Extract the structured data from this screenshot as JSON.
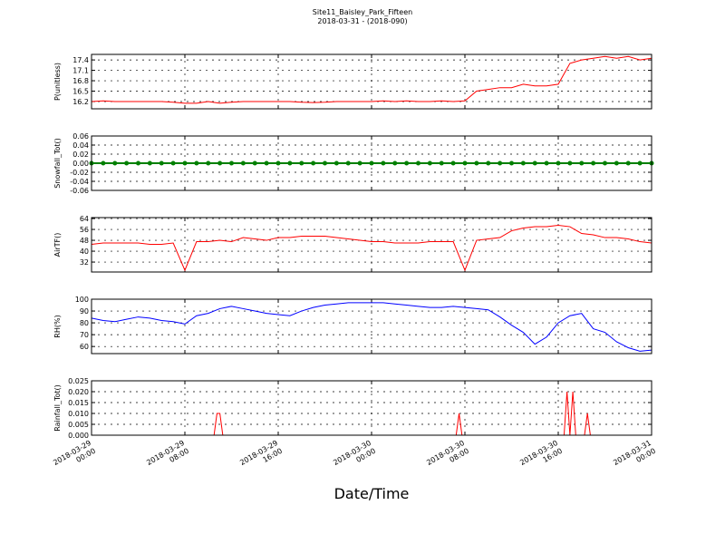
{
  "chart_data": [
    {
      "type": "line",
      "title": "Site11_Baisley_Park_Fifteen",
      "subtitle": "2018-03-31 - (2018-090)",
      "ylabel": "P(unitless)",
      "color": "#ff0000",
      "grid": true,
      "xlim": [
        "2018-03-29 00:00",
        "2018-03-31 00:00"
      ],
      "xticks": [
        "2018-03-29 00:00",
        "2018-03-29 08:00",
        "2018-03-29 16:00",
        "2018-03-30 00:00",
        "2018-03-30 08:00",
        "2018-03-30 16:00",
        "2018-03-31 00:00"
      ],
      "ylim": [
        15.99,
        17.56
      ],
      "yticks": [
        16.2,
        16.5,
        16.8,
        17.1,
        17.4
      ],
      "x": [
        "2018-03-29 00:00",
        "2018-03-29 01:00",
        "2018-03-29 02:00",
        "2018-03-29 03:00",
        "2018-03-29 04:00",
        "2018-03-29 05:00",
        "2018-03-29 06:00",
        "2018-03-29 07:00",
        "2018-03-29 08:00",
        "2018-03-29 09:00",
        "2018-03-29 10:00",
        "2018-03-29 11:00",
        "2018-03-29 12:00",
        "2018-03-29 13:00",
        "2018-03-29 14:00",
        "2018-03-29 15:00",
        "2018-03-29 16:00",
        "2018-03-29 17:00",
        "2018-03-29 18:00",
        "2018-03-29 19:00",
        "2018-03-29 20:00",
        "2018-03-29 21:00",
        "2018-03-29 22:00",
        "2018-03-29 23:00",
        "2018-03-30 00:00",
        "2018-03-30 01:00",
        "2018-03-30 02:00",
        "2018-03-30 03:00",
        "2018-03-30 04:00",
        "2018-03-30 05:00",
        "2018-03-30 06:00",
        "2018-03-30 07:00",
        "2018-03-30 08:00",
        "2018-03-30 09:00",
        "2018-03-30 10:00",
        "2018-03-30 11:00",
        "2018-03-30 12:00",
        "2018-03-30 13:00",
        "2018-03-30 14:00",
        "2018-03-30 15:00",
        "2018-03-30 16:00",
        "2018-03-30 17:00",
        "2018-03-30 18:00",
        "2018-03-30 19:00",
        "2018-03-30 20:00",
        "2018-03-30 21:00",
        "2018-03-30 22:00",
        "2018-03-30 23:00",
        "2018-03-31 00:00"
      ],
      "values": [
        16.2,
        16.22,
        16.2,
        16.2,
        16.2,
        16.2,
        16.2,
        16.18,
        16.15,
        16.15,
        16.2,
        16.15,
        16.18,
        16.2,
        16.2,
        16.2,
        16.2,
        16.2,
        16.18,
        16.17,
        16.18,
        16.2,
        16.2,
        16.2,
        16.2,
        16.22,
        16.2,
        16.22,
        16.2,
        16.2,
        16.22,
        16.2,
        16.22,
        16.5,
        16.55,
        16.6,
        16.6,
        16.7,
        16.65,
        16.65,
        16.7,
        17.3,
        17.4,
        17.45,
        17.5,
        17.45,
        17.5,
        17.4,
        17.45
      ]
    },
    {
      "type": "line",
      "ylabel": "Snowfall_Tot()",
      "color": "#008000",
      "marker": "o",
      "grid": true,
      "xlim": [
        "2018-03-29 00:00",
        "2018-03-31 00:00"
      ],
      "xticks": [
        "2018-03-29 00:00",
        "2018-03-29 08:00",
        "2018-03-29 16:00",
        "2018-03-30 00:00",
        "2018-03-30 08:00",
        "2018-03-30 16:00",
        "2018-03-31 00:00"
      ],
      "ylim": [
        -0.06,
        0.06
      ],
      "yticks": [
        -0.06,
        -0.04,
        -0.02,
        {
          "value": 0,
          "label": "0.00"
        },
        0.02,
        0.04,
        0.06
      ],
      "x": [
        "2018-03-29 00:00",
        "2018-03-29 01:00",
        "2018-03-29 02:00",
        "2018-03-29 03:00",
        "2018-03-29 04:00",
        "2018-03-29 05:00",
        "2018-03-29 06:00",
        "2018-03-29 07:00",
        "2018-03-29 08:00",
        "2018-03-29 09:00",
        "2018-03-29 10:00",
        "2018-03-29 11:00",
        "2018-03-29 12:00",
        "2018-03-29 13:00",
        "2018-03-29 14:00",
        "2018-03-29 15:00",
        "2018-03-29 16:00",
        "2018-03-29 17:00",
        "2018-03-29 18:00",
        "2018-03-29 19:00",
        "2018-03-29 20:00",
        "2018-03-29 21:00",
        "2018-03-29 22:00",
        "2018-03-29 23:00",
        "2018-03-30 00:00",
        "2018-03-30 01:00",
        "2018-03-30 02:00",
        "2018-03-30 03:00",
        "2018-03-30 04:00",
        "2018-03-30 05:00",
        "2018-03-30 06:00",
        "2018-03-30 07:00",
        "2018-03-30 08:00",
        "2018-03-30 09:00",
        "2018-03-30 10:00",
        "2018-03-30 11:00",
        "2018-03-30 12:00",
        "2018-03-30 13:00",
        "2018-03-30 14:00",
        "2018-03-30 15:00",
        "2018-03-30 16:00",
        "2018-03-30 17:00",
        "2018-03-30 18:00",
        "2018-03-30 19:00",
        "2018-03-30 20:00",
        "2018-03-30 21:00",
        "2018-03-30 22:00",
        "2018-03-30 23:00",
        "2018-03-31 00:00"
      ],
      "values": [
        0,
        0,
        0,
        0,
        0,
        0,
        0,
        0,
        0,
        0,
        0,
        0,
        0,
        0,
        0,
        0,
        0,
        0,
        0,
        0,
        0,
        0,
        0,
        0,
        0,
        0,
        0,
        0,
        0,
        0,
        0,
        0,
        0,
        0,
        0,
        0,
        0,
        0,
        0,
        0,
        0,
        0,
        0,
        0,
        0,
        0,
        0,
        0,
        0
      ]
    },
    {
      "type": "line",
      "ylabel": "AirTF()",
      "color": "#ff0000",
      "grid": true,
      "xlim": [
        "2018-03-29 00:00",
        "2018-03-31 00:00"
      ],
      "xticks": [
        "2018-03-29 00:00",
        "2018-03-29 08:00",
        "2018-03-29 16:00",
        "2018-03-30 00:00",
        "2018-03-30 08:00",
        "2018-03-30 16:00",
        "2018-03-31 00:00"
      ],
      "ylim": [
        24.7,
        64.7
      ],
      "yticks": [
        32,
        40,
        48,
        56,
        64
      ],
      "x": [
        "2018-03-29 00:00",
        "2018-03-29 01:00",
        "2018-03-29 02:00",
        "2018-03-29 03:00",
        "2018-03-29 04:00",
        "2018-03-29 05:00",
        "2018-03-29 06:00",
        "2018-03-29 07:00",
        "2018-03-29 08:00",
        "2018-03-29 09:00",
        "2018-03-29 10:00",
        "2018-03-29 11:00",
        "2018-03-29 12:00",
        "2018-03-29 13:00",
        "2018-03-29 14:00",
        "2018-03-29 15:00",
        "2018-03-29 16:00",
        "2018-03-29 17:00",
        "2018-03-29 18:00",
        "2018-03-29 19:00",
        "2018-03-29 20:00",
        "2018-03-29 21:00",
        "2018-03-29 22:00",
        "2018-03-29 23:00",
        "2018-03-30 00:00",
        "2018-03-30 01:00",
        "2018-03-30 02:00",
        "2018-03-30 03:00",
        "2018-03-30 04:00",
        "2018-03-30 05:00",
        "2018-03-30 06:00",
        "2018-03-30 07:00",
        "2018-03-30 08:00",
        "2018-03-30 09:00",
        "2018-03-30 10:00",
        "2018-03-30 11:00",
        "2018-03-30 12:00",
        "2018-03-30 13:00",
        "2018-03-30 14:00",
        "2018-03-30 15:00",
        "2018-03-30 16:00",
        "2018-03-30 17:00",
        "2018-03-30 18:00",
        "2018-03-30 19:00",
        "2018-03-30 20:00",
        "2018-03-30 21:00",
        "2018-03-30 22:00",
        "2018-03-30 23:00",
        "2018-03-31 00:00"
      ],
      "values": [
        45,
        46,
        46,
        46,
        46,
        45,
        45,
        46,
        26,
        47,
        47,
        48,
        47,
        50,
        49,
        48,
        50,
        50,
        51,
        51,
        51,
        50,
        49,
        48,
        47,
        47,
        46,
        46,
        46,
        47,
        47,
        47,
        26,
        48,
        49,
        50,
        55,
        57,
        58,
        58,
        59,
        58,
        53,
        52,
        50,
        50,
        49,
        47,
        46
      ]
    },
    {
      "type": "line",
      "ylabel": "RH(%)",
      "color": "#0000ff",
      "grid": true,
      "xlim": [
        "2018-03-29 00:00",
        "2018-03-31 00:00"
      ],
      "xticks": [
        "2018-03-29 00:00",
        "2018-03-29 08:00",
        "2018-03-29 16:00",
        "2018-03-30 00:00",
        "2018-03-30 08:00",
        "2018-03-30 16:00",
        "2018-03-31 00:00"
      ],
      "ylim": [
        54,
        100
      ],
      "yticks": [
        60,
        70,
        80,
        90,
        100
      ],
      "x": [
        "2018-03-29 00:00",
        "2018-03-29 01:00",
        "2018-03-29 02:00",
        "2018-03-29 03:00",
        "2018-03-29 04:00",
        "2018-03-29 05:00",
        "2018-03-29 06:00",
        "2018-03-29 07:00",
        "2018-03-29 08:00",
        "2018-03-29 09:00",
        "2018-03-29 10:00",
        "2018-03-29 11:00",
        "2018-03-29 12:00",
        "2018-03-29 13:00",
        "2018-03-29 14:00",
        "2018-03-29 15:00",
        "2018-03-29 16:00",
        "2018-03-29 17:00",
        "2018-03-29 18:00",
        "2018-03-29 19:00",
        "2018-03-29 20:00",
        "2018-03-29 21:00",
        "2018-03-29 22:00",
        "2018-03-29 23:00",
        "2018-03-30 00:00",
        "2018-03-30 01:00",
        "2018-03-30 02:00",
        "2018-03-30 03:00",
        "2018-03-30 04:00",
        "2018-03-30 05:00",
        "2018-03-30 06:00",
        "2018-03-30 07:00",
        "2018-03-30 08:00",
        "2018-03-30 09:00",
        "2018-03-30 10:00",
        "2018-03-30 11:00",
        "2018-03-30 12:00",
        "2018-03-30 13:00",
        "2018-03-30 14:00",
        "2018-03-30 15:00",
        "2018-03-30 16:00",
        "2018-03-30 17:00",
        "2018-03-30 18:00",
        "2018-03-30 19:00",
        "2018-03-30 20:00",
        "2018-03-30 21:00",
        "2018-03-30 22:00",
        "2018-03-30 23:00",
        "2018-03-31 00:00"
      ],
      "values": [
        84,
        82,
        81,
        83,
        85,
        84,
        82,
        81,
        79,
        86,
        88,
        92,
        94,
        92,
        90,
        88,
        87,
        86,
        90,
        93,
        95,
        96,
        97,
        97,
        97,
        97,
        96,
        95,
        94,
        93,
        93,
        94,
        93,
        92,
        91,
        85,
        78,
        72,
        62,
        68,
        80,
        86,
        88,
        75,
        72,
        64,
        59,
        56,
        57
      ]
    },
    {
      "type": "line",
      "ylabel": "Rainfall_Tot()",
      "xlabel": "Date/Time",
      "color": "#ff0000",
      "grid": true,
      "xlim": [
        "2018-03-29 00:00",
        "2018-03-31 00:00"
      ],
      "xticks": [
        "2018-03-29 00:00",
        "2018-03-29 08:00",
        "2018-03-29 16:00",
        "2018-03-30 00:00",
        "2018-03-30 08:00",
        "2018-03-30 16:00",
        "2018-03-31 00:00"
      ],
      "ylim": [
        0,
        0.025
      ],
      "yticks": [
        {
          "value": 0,
          "label": "0.000"
        },
        0.005,
        {
          "value": 0.01,
          "label": "0.010"
        },
        0.015,
        {
          "value": 0.02,
          "label": "0.020"
        },
        0.025
      ],
      "x": [
        "2018-03-29 00:00",
        "2018-03-29 10:30",
        "2018-03-29 10:45",
        "2018-03-29 11:00",
        "2018-03-29 11:15",
        "2018-03-30 07:15",
        "2018-03-30 07:30",
        "2018-03-30 07:45",
        "2018-03-30 16:30",
        "2018-03-30 16:45",
        "2018-03-30 17:00",
        "2018-03-30 17:15",
        "2018-03-30 17:30",
        "2018-03-30 18:15",
        "2018-03-30 18:30",
        "2018-03-30 18:45",
        "2018-03-31 00:00"
      ],
      "values": [
        0,
        0,
        0.01,
        0.01,
        0,
        0,
        0.01,
        0,
        0,
        0.02,
        0,
        0.02,
        0,
        0,
        0.01,
        0,
        0
      ]
    }
  ]
}
